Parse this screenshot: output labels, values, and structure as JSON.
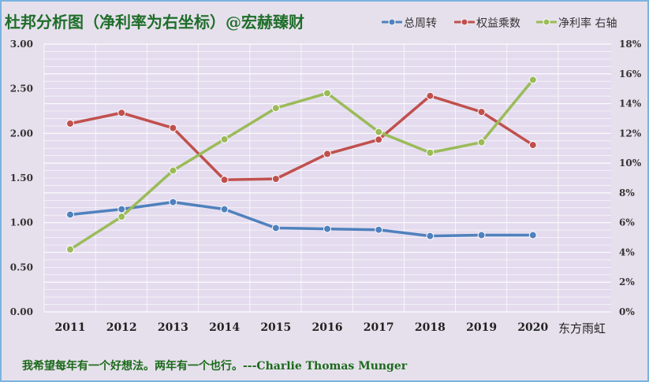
{
  "title": "杜邦分析图（净利率为右坐标）@宏赫臻财",
  "watermark": "东方雨虹",
  "quote": "我希望每年有一个好想法。两年有一个也行。---Charlie Thomas  Munger",
  "chart_data": {
    "type": "line",
    "categories": [
      "2011",
      "2012",
      "2013",
      "2014",
      "2015",
      "2016",
      "2017",
      "2018",
      "2019",
      "2020"
    ],
    "y_left": {
      "min": 0,
      "max": 3.0,
      "ticks": [
        "0.00",
        "0.50",
        "1.00",
        "1.50",
        "2.00",
        "2.50",
        "3.00"
      ],
      "tick_values": [
        0,
        0.5,
        1.0,
        1.5,
        2.0,
        2.5,
        3.0
      ]
    },
    "y_right": {
      "min": 0,
      "max": 18,
      "ticks": [
        "0%",
        "2%",
        "4%",
        "6%",
        "8%",
        "10%",
        "12%",
        "14%",
        "16%",
        "18%"
      ],
      "tick_values": [
        0,
        2,
        4,
        6,
        8,
        10,
        12,
        14,
        16,
        18
      ]
    },
    "grid": true,
    "legend_position": "top-right",
    "series": [
      {
        "name": "总周转",
        "axis": "left",
        "color": "#4f81bd",
        "values": [
          1.09,
          1.15,
          1.23,
          1.15,
          0.94,
          0.93,
          0.92,
          0.85,
          0.86,
          0.86
        ]
      },
      {
        "name": "权益乘数",
        "axis": "left",
        "color": "#c0504d",
        "values": [
          2.11,
          2.23,
          2.06,
          1.48,
          1.49,
          1.77,
          1.93,
          2.42,
          2.24,
          1.87
        ]
      },
      {
        "name": "净利率 右轴",
        "axis": "right",
        "color": "#9bbb59",
        "values": [
          4.2,
          6.4,
          9.5,
          11.6,
          13.7,
          14.7,
          12.1,
          10.7,
          11.4,
          15.6
        ]
      }
    ]
  }
}
